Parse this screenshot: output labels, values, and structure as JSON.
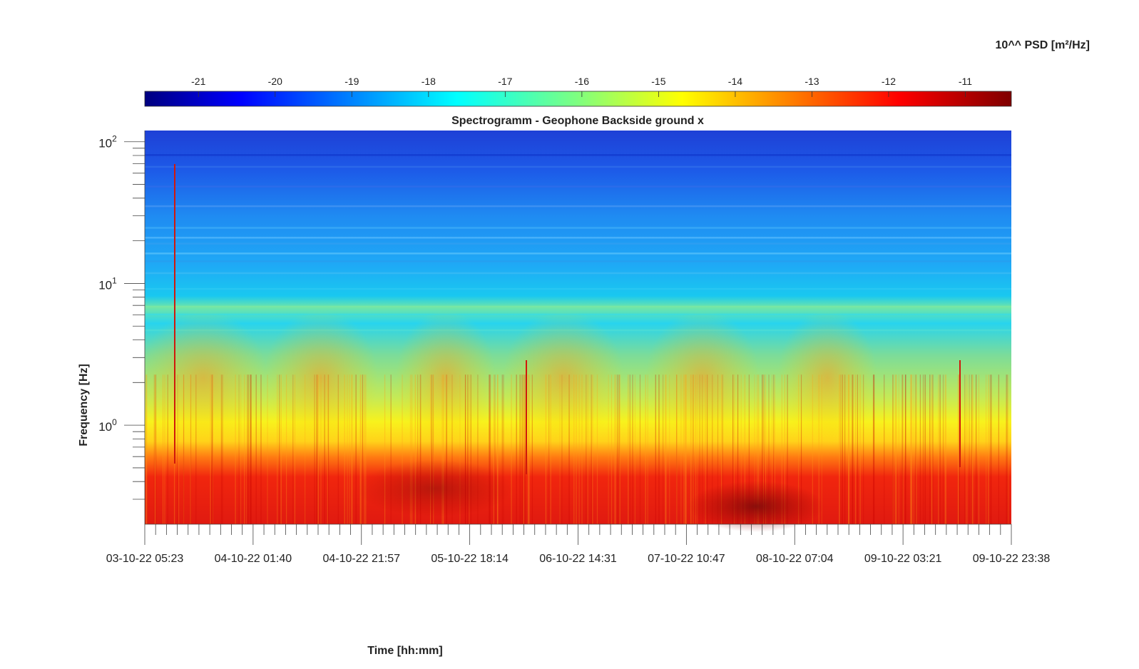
{
  "chart_data": {
    "type": "heatmap",
    "title": "Spectrogramm - Geophone Backside ground x",
    "xlabel": "Time [hh:mm]",
    "ylabel": "Frequency [Hz]",
    "y_scale": "log",
    "ylim": [
      0.2,
      120
    ],
    "yticks": [
      {
        "exp": "0",
        "value": 1
      },
      {
        "exp": "1",
        "value": 10
      },
      {
        "exp": "2",
        "value": 100
      }
    ],
    "xticks": [
      "03-10-22 05:23",
      "04-10-22 01:40",
      "04-10-22 21:57",
      "05-10-22 18:14",
      "06-10-22 14:31",
      "07-10-22 10:47",
      "08-10-22 07:04",
      "09-10-22 03:21",
      "09-10-22 23:38"
    ],
    "colorbar": {
      "label": "10^^ PSD [m²/Hz]",
      "ticks": [
        "-21",
        "-20",
        "-19",
        "-18",
        "-17",
        "-16",
        "-15",
        "-14",
        "-13",
        "-12",
        "-11"
      ],
      "range": [
        -21.7,
        -10.4
      ],
      "colormap": "jet",
      "position": "top"
    },
    "color_levels_by_frequency": [
      {
        "freq": 120,
        "log10_psd": -20.3
      },
      {
        "freq": 60,
        "log10_psd": -19.6
      },
      {
        "freq": 30,
        "log10_psd": -18.6
      },
      {
        "freq": 15,
        "log10_psd": -18.0
      },
      {
        "freq": 8,
        "log10_psd": -17.0
      },
      {
        "freq": 4,
        "log10_psd": -16.6
      },
      {
        "freq": 2,
        "log10_psd": -15.8
      },
      {
        "freq": 1.2,
        "log10_psd": -15.0
      },
      {
        "freq": 0.8,
        "log10_psd": -13.8
      },
      {
        "freq": 0.5,
        "log10_psd": -12.3
      },
      {
        "freq": 0.2,
        "log10_psd": -12.0
      }
    ]
  }
}
